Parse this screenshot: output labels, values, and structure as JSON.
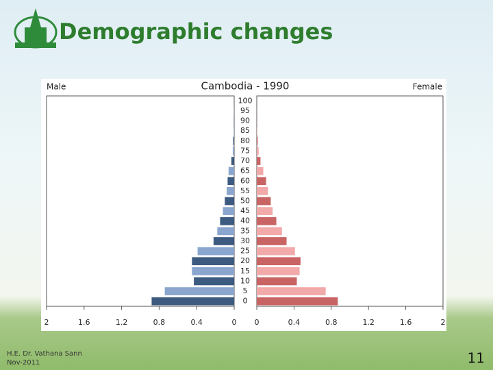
{
  "slide": {
    "title": "Demographic changes",
    "author": "H.E. Dr. Vathana Sann",
    "date": "Nov-2011",
    "page": "11"
  },
  "chart_data": {
    "type": "pyramid",
    "title": "Cambodia - 1990",
    "categories": [
      "0",
      "5",
      "10",
      "15",
      "20",
      "25",
      "30",
      "35",
      "40",
      "45",
      "50",
      "55",
      "60",
      "65",
      "70",
      "75",
      "80",
      "85",
      "90",
      "95",
      "100"
    ],
    "series": [
      {
        "name": "Male",
        "colors": [
          "#3d5a80",
          "#8aa6cf"
        ],
        "values": [
          0.88,
          0.74,
          0.43,
          0.45,
          0.45,
          0.39,
          0.22,
          0.18,
          0.15,
          0.12,
          0.1,
          0.08,
          0.07,
          0.06,
          0.03,
          0.015,
          0.01,
          0.005,
          0.003,
          0.002,
          0.001
        ]
      },
      {
        "name": "Female",
        "colors": [
          "#c96464",
          "#f2a9a9"
        ],
        "values": [
          0.87,
          0.74,
          0.43,
          0.46,
          0.47,
          0.41,
          0.32,
          0.27,
          0.21,
          0.17,
          0.15,
          0.12,
          0.1,
          0.07,
          0.04,
          0.02,
          0.01,
          0.005,
          0.002,
          0.001,
          0
        ]
      }
    ],
    "xlim": [
      0,
      2
    ],
    "xticks": [
      0,
      0.4,
      0.8,
      1.2,
      1.6,
      2
    ]
  }
}
